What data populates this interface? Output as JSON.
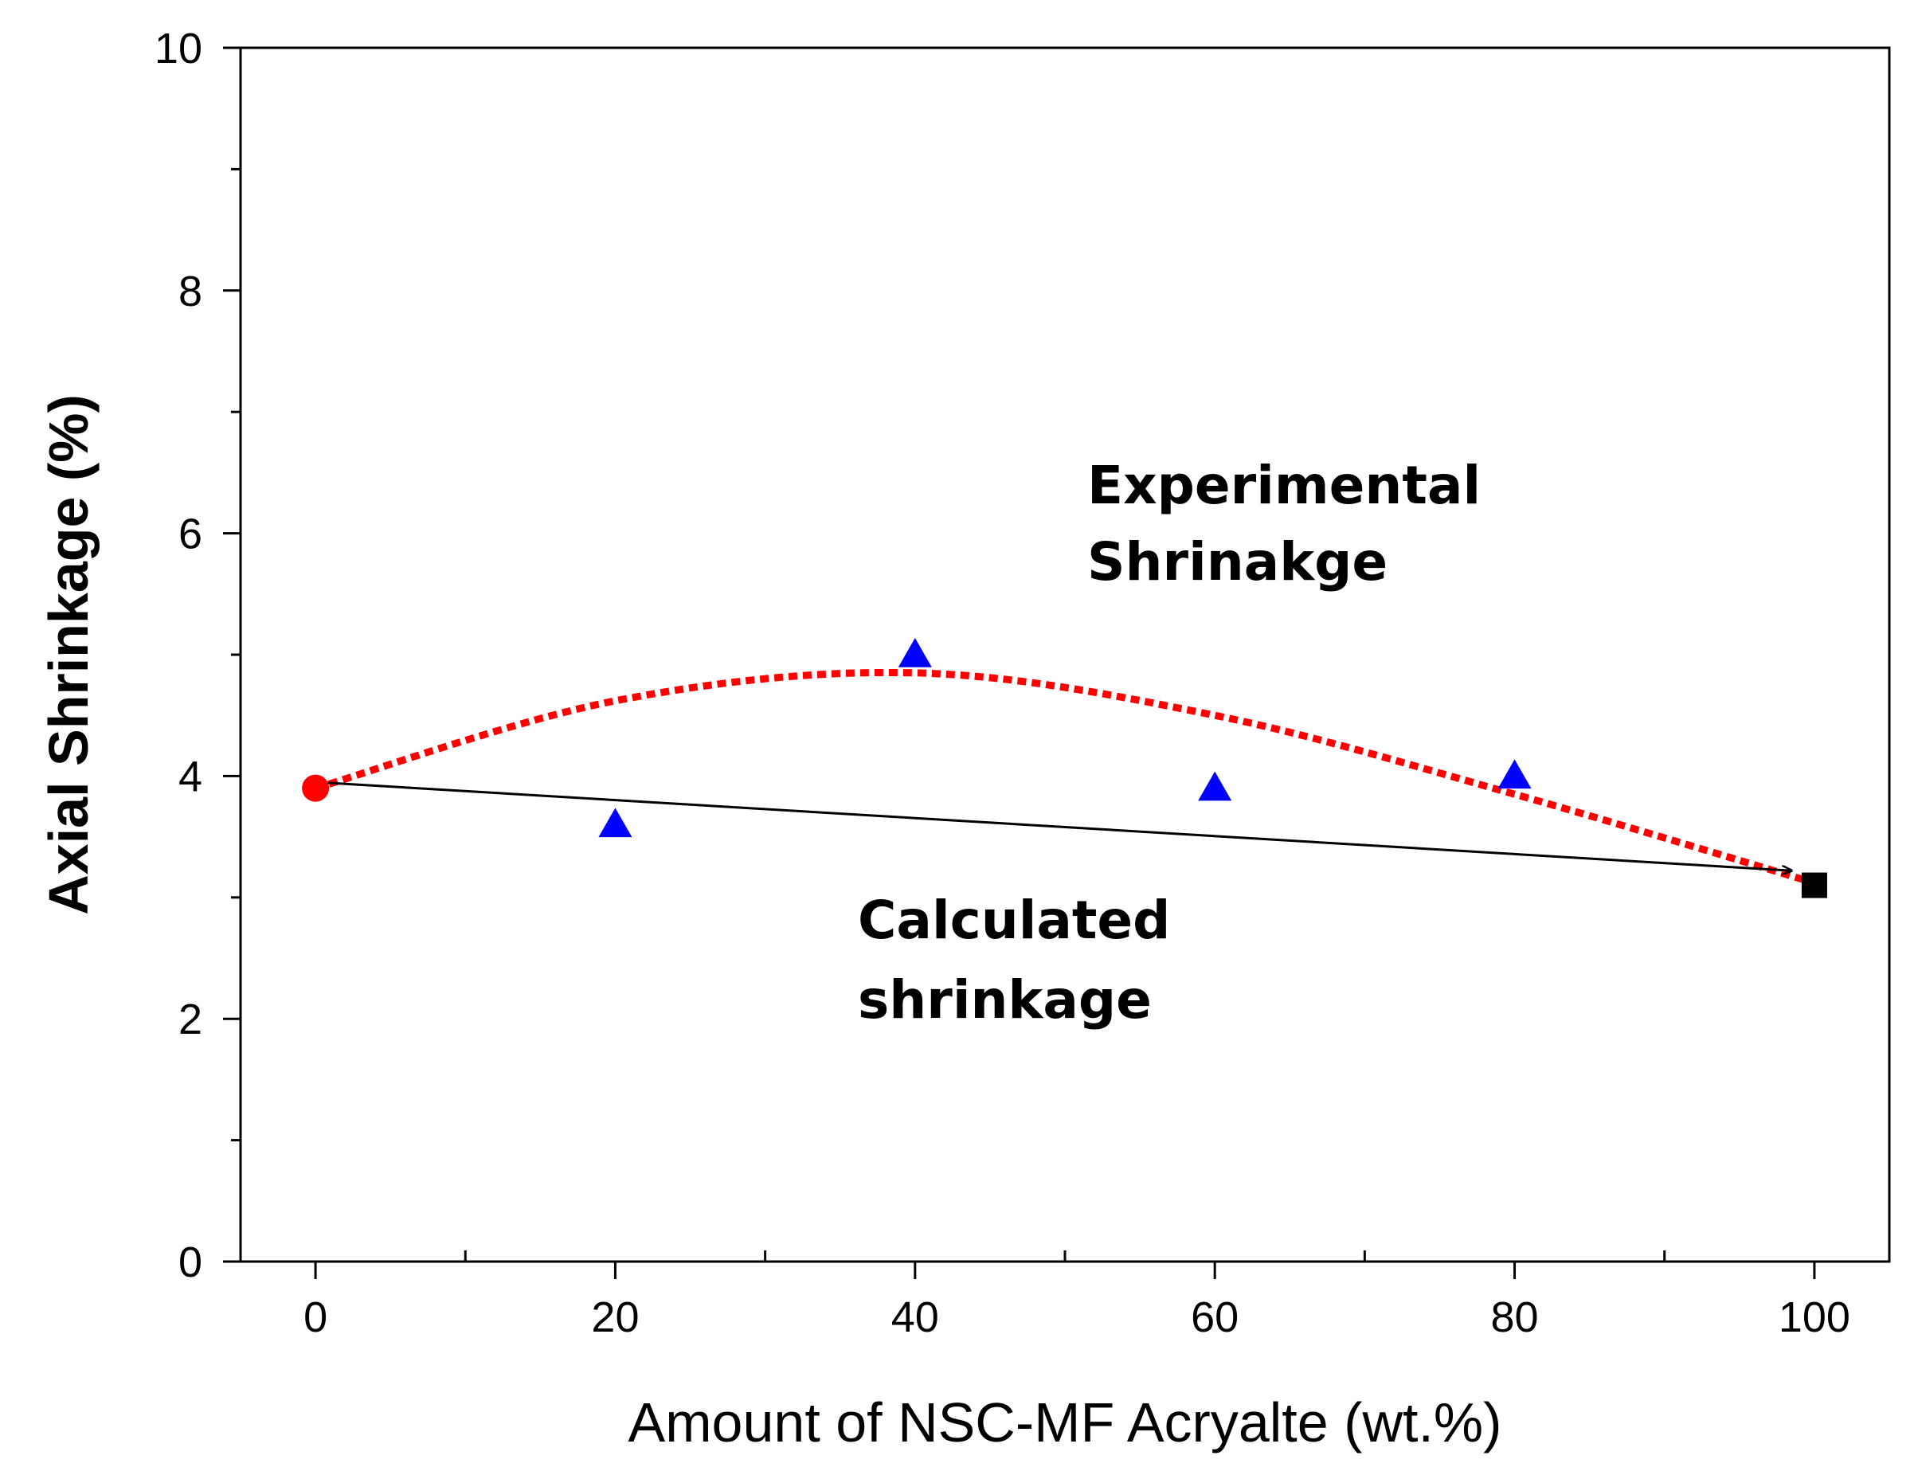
{
  "chart_data": {
    "type": "scatter",
    "xlabel": "Amount of NSC-MF Acryalte (wt.%)",
    "ylabel": "Axial Shrinkage (%)",
    "xlim": [
      -5,
      105
    ],
    "ylim": [
      0,
      10
    ],
    "x_ticks": [
      0,
      20,
      40,
      60,
      80,
      100
    ],
    "x_tick_labels": [
      "0",
      "20",
      "40",
      "60",
      "80",
      "100"
    ],
    "y_ticks": [
      0,
      2,
      4,
      6,
      8,
      10
    ],
    "y_tick_labels": [
      "0",
      "2",
      "4",
      "6",
      "8",
      "10"
    ],
    "grid": false,
    "series": [
      {
        "marker": "circle",
        "color": "#ff0000",
        "x": [
          0
        ],
        "y": [
          3.9
        ]
      },
      {
        "marker": "triangle",
        "color": "#0000ff",
        "x": [
          20,
          40,
          60,
          80
        ],
        "y": [
          3.6,
          5.0,
          3.9,
          4.0
        ]
      },
      {
        "marker": "square",
        "color": "#000000",
        "x": [
          100
        ],
        "y": [
          3.1
        ]
      }
    ],
    "curves": [
      {
        "style": "dotted",
        "color": "#ff0000",
        "x": [
          0,
          20,
          40,
          60,
          80,
          100
        ],
        "y": [
          3.9,
          4.62,
          4.85,
          4.5,
          3.85,
          3.12
        ]
      },
      {
        "style": "solid-arrow",
        "color": "#000000",
        "x": [
          0,
          98.5
        ],
        "y": [
          3.95,
          3.22
        ]
      }
    ],
    "annotations": {
      "experimental_line1": "Experimental",
      "experimental_line2": "Shrinakge",
      "calculated_line1": "Calculated",
      "calculated_line2": "shrinkage"
    }
  }
}
